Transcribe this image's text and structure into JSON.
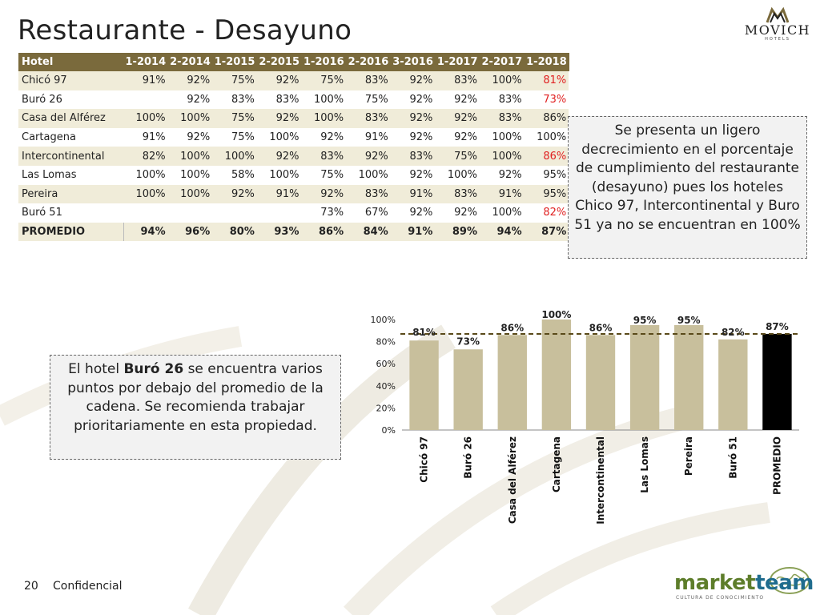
{
  "page": {
    "title": "Restaurante - Desayuno",
    "page_number": "20",
    "footer_label": "Confidencial"
  },
  "logo": {
    "brand": "MOVICH",
    "sub": "HOTELS"
  },
  "footer_logo": {
    "part1": "market",
    "part2": "team",
    "tagline": "CULTURA DE CONOCIMIENTO"
  },
  "table": {
    "headers": [
      "Hotel",
      "1-2014",
      "2-2014",
      "1-2015",
      "2-2015",
      "1-2016",
      "2-2016",
      "3-2016",
      "1-2017",
      "2-2017",
      "1-2018"
    ],
    "rows": [
      {
        "hotel": "Chicó 97",
        "values": [
          "91%",
          "92%",
          "75%",
          "92%",
          "75%",
          "83%",
          "92%",
          "83%",
          "100%",
          "81%"
        ],
        "last_red": true
      },
      {
        "hotel": "Buró 26",
        "values": [
          "",
          "92%",
          "83%",
          "83%",
          "100%",
          "75%",
          "92%",
          "92%",
          "83%",
          "73%"
        ],
        "last_red": true
      },
      {
        "hotel": "Casa del Alférez",
        "values": [
          "100%",
          "100%",
          "75%",
          "92%",
          "100%",
          "83%",
          "92%",
          "92%",
          "83%",
          "86%"
        ],
        "last_red": false
      },
      {
        "hotel": "Cartagena",
        "values": [
          "91%",
          "92%",
          "75%",
          "100%",
          "92%",
          "91%",
          "92%",
          "92%",
          "100%",
          "100%"
        ],
        "last_red": false
      },
      {
        "hotel": "Intercontinental",
        "values": [
          "82%",
          "100%",
          "100%",
          "92%",
          "83%",
          "92%",
          "83%",
          "75%",
          "100%",
          "86%"
        ],
        "last_red": true
      },
      {
        "hotel": "Las Lomas",
        "values": [
          "100%",
          "100%",
          "58%",
          "100%",
          "75%",
          "100%",
          "92%",
          "100%",
          "92%",
          "95%"
        ],
        "last_red": false
      },
      {
        "hotel": "Pereira",
        "values": [
          "100%",
          "100%",
          "92%",
          "91%",
          "92%",
          "83%",
          "91%",
          "83%",
          "91%",
          "95%"
        ],
        "last_red": false
      },
      {
        "hotel": "Buró 51",
        "values": [
          "",
          "",
          "",
          "",
          "73%",
          "67%",
          "92%",
          "92%",
          "100%",
          "82%"
        ],
        "last_red": true
      }
    ],
    "average": {
      "hotel": "PROMEDIO",
      "values": [
        "94%",
        "96%",
        "80%",
        "93%",
        "86%",
        "84%",
        "91%",
        "89%",
        "94%",
        "87%"
      ]
    }
  },
  "notes": {
    "right": "Se presenta un ligero decrecimiento en el porcentaje de cumplimiento del restaurante (desayuno) pues los hoteles Chico 97, Intercontinental y Buro 51 ya no se encuentran en 100%",
    "left_pre": "El hotel ",
    "left_bold": "Buró 26",
    "left_post": " se encuentra varios puntos por debajo del promedio de la cadena. Se recomienda trabajar prioritariamente en esta propiedad."
  },
  "chart_data": {
    "type": "bar",
    "categories": [
      "Chicó 97",
      "Buró 26",
      "Casa del Alférez",
      "Cartagena",
      "Intercontinental",
      "Las Lomas",
      "Pereira",
      "Buró 51",
      "PROMEDIO"
    ],
    "values": [
      81,
      73,
      86,
      100,
      86,
      95,
      95,
      82,
      87
    ],
    "value_labels": [
      "81%",
      "73%",
      "86%",
      "100%",
      "86%",
      "95%",
      "95%",
      "82%",
      "87%"
    ],
    "y_ticks": [
      "0%",
      "20%",
      "40%",
      "60%",
      "80%",
      "100%"
    ],
    "ylim": [
      0,
      100
    ],
    "average_line": 87,
    "bar_color": "#c8bf9c",
    "highlight_color": "#000000",
    "average_line_color": "#5a4a1a",
    "grid": false,
    "legend": "none"
  }
}
